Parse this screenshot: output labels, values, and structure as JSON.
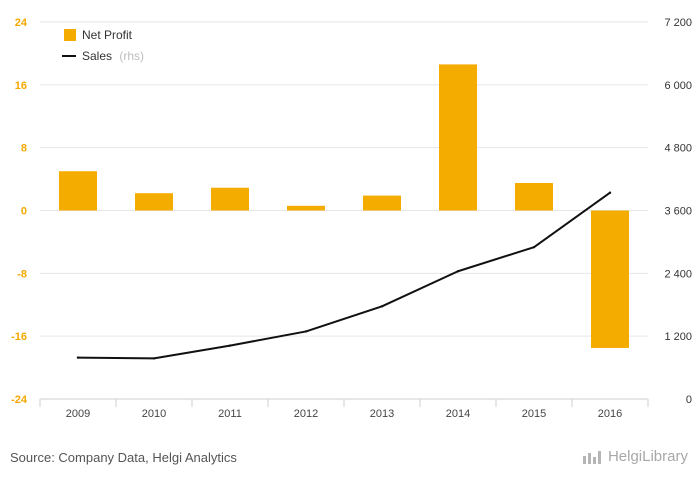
{
  "chart_data": {
    "type": "bar",
    "categories": [
      "2009",
      "2010",
      "2011",
      "2012",
      "2013",
      "2014",
      "2015",
      "2016"
    ],
    "series": [
      {
        "name": "Net Profit",
        "type": "bar",
        "axis": "left",
        "values": [
          5.0,
          2.2,
          2.9,
          0.6,
          1.9,
          18.6,
          3.5,
          -17.5
        ]
      },
      {
        "name": "Sales",
        "type": "line",
        "axis": "right",
        "values": [
          790,
          775,
          1020,
          1290,
          1770,
          2440,
          2900,
          3940
        ]
      }
    ],
    "left_axis": {
      "min": -24,
      "max": 24,
      "ticks": [
        "24",
        "16",
        "8",
        "0",
        "-8",
        "-16",
        "-24"
      ],
      "tick_values": [
        24,
        16,
        8,
        0,
        -8,
        -16,
        -24
      ]
    },
    "right_axis": {
      "min": 0,
      "max": 7200,
      "ticks": [
        "7 200",
        "6 000",
        "4 800",
        "3 600",
        "2 400",
        "1 200",
        "0"
      ],
      "tick_values": [
        7200,
        6000,
        4800,
        3600,
        2400,
        1200,
        0
      ]
    },
    "legend": [
      {
        "label": "Net Profit",
        "note": ""
      },
      {
        "label": "Sales",
        "note": "(rhs)"
      }
    ],
    "legend_position": "top-left",
    "grid": true,
    "colors": {
      "bar": "#f5ac00",
      "line": "#111111",
      "grid": "#e6e6e6",
      "left_tick": "#f5a800"
    }
  },
  "footer": {
    "source": "Source: Company Data, Helgi Analytics",
    "brand": "HelgiLibrary"
  }
}
